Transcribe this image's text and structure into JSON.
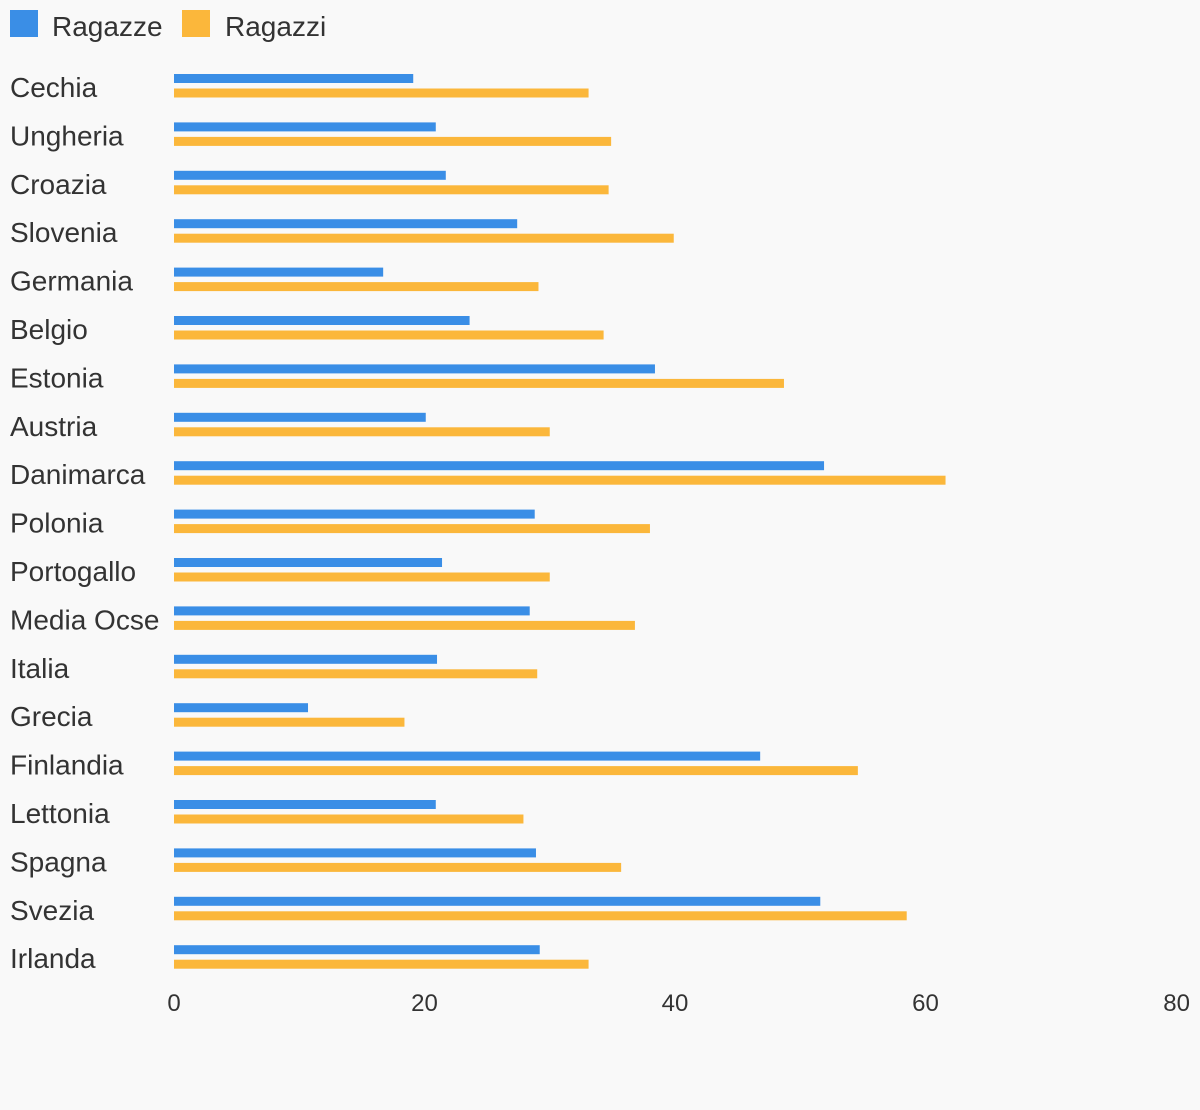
{
  "chart_data": {
    "type": "bar",
    "orientation": "horizontal",
    "categories": [
      "Cechia",
      "Ungheria",
      "Croazia",
      "Slovenia",
      "Germania",
      "Belgio",
      "Estonia",
      "Austria",
      "Danimarca",
      "Polonia",
      "Portogallo",
      "Media Ocse",
      "Italia",
      "Grecia",
      "Finlandia",
      "Lettonia",
      "Spagna",
      "Svezia",
      "Irlanda"
    ],
    "series": [
      {
        "name": "Ragazze",
        "color": "#3a8ee6",
        "values": [
          19.1,
          20.9,
          21.7,
          27.4,
          16.7,
          23.6,
          38.4,
          20.1,
          51.9,
          28.8,
          21.4,
          28.4,
          21.0,
          10.7,
          46.8,
          20.9,
          28.9,
          51.6,
          29.2
        ]
      },
      {
        "name": "Ragazzi",
        "color": "#fbb73b",
        "values": [
          33.1,
          34.9,
          34.7,
          39.9,
          29.1,
          34.3,
          48.7,
          30.0,
          61.6,
          38.0,
          30.0,
          36.8,
          29.0,
          18.4,
          54.6,
          27.9,
          35.7,
          58.5,
          33.1
        ]
      }
    ],
    "xlim": [
      0,
      80
    ],
    "xticks": [
      "0",
      "20",
      "40",
      "60",
      "80"
    ],
    "grid": false,
    "legend_position": "top-left"
  }
}
